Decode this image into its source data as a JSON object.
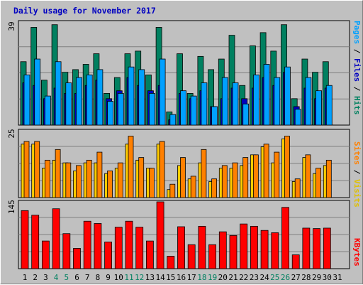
{
  "title": "Daily usage for November 2017",
  "panels": {
    "top": {
      "max_label": "39",
      "legend": [
        {
          "text": "Pages",
          "color": "#00a0ff"
        },
        {
          "text": "Files",
          "color": "#0000c0"
        },
        {
          "text": "Hits",
          "color": "#008060"
        }
      ]
    },
    "middle": {
      "max_label": "25",
      "legend": [
        {
          "text": "Sites",
          "color": "#ff8000"
        },
        {
          "text": "Visits",
          "color": "#e0c000"
        }
      ]
    },
    "bottom": {
      "max_label": "145",
      "legend": [
        {
          "text": "KBytes",
          "color": "#ff0000"
        }
      ]
    }
  },
  "legend_separator": " / ",
  "days": [
    "1",
    "2",
    "3",
    "4",
    "5",
    "6",
    "7",
    "8",
    "9",
    "10",
    "11",
    "12",
    "13",
    "14",
    "15",
    "16",
    "17",
    "18",
    "19",
    "20",
    "21",
    "22",
    "23",
    "24",
    "25",
    "26",
    "27",
    "28",
    "29",
    "30",
    "31"
  ],
  "weekend_days": [
    "4",
    "5",
    "11",
    "12",
    "18",
    "19",
    "25",
    "26"
  ],
  "colors": {
    "hits": "#008060",
    "files": "#0000c0",
    "pages": "#00a0ff",
    "visits": "#ffcc00",
    "sites": "#ff8000",
    "kbytes": "#ff0000",
    "weekday_label": "#000000",
    "weekend_label": "#008060"
  },
  "chart_data": {
    "type": "bar",
    "x": [
      "1",
      "2",
      "3",
      "4",
      "5",
      "6",
      "7",
      "8",
      "9",
      "10",
      "11",
      "12",
      "13",
      "14",
      "15",
      "16",
      "17",
      "18",
      "19",
      "20",
      "21",
      "22",
      "23",
      "24",
      "25",
      "26",
      "27",
      "28",
      "29",
      "30",
      "31"
    ],
    "series": [
      {
        "name": "Hits",
        "values": [
          24,
          37,
          17,
          38,
          20,
          21,
          23,
          27,
          12,
          18,
          27,
          28,
          19,
          37,
          5,
          27,
          12,
          26,
          21,
          25,
          34,
          15,
          30,
          35,
          28,
          38,
          10,
          25,
          20,
          24,
          0
        ]
      },
      {
        "name": "Files",
        "values": [
          16,
          15,
          10,
          14,
          12,
          12,
          15,
          17,
          10,
          13,
          18,
          15,
          13,
          15,
          2,
          12,
          10,
          13,
          7,
          10,
          14,
          10,
          14,
          18,
          15,
          20,
          7,
          14,
          10,
          14,
          0
        ]
      },
      {
        "name": "Pages",
        "values": [
          19,
          25,
          11,
          24,
          16,
          18,
          19,
          21,
          9,
          12,
          22,
          21,
          12,
          25,
          4,
          13,
          11,
          16,
          7,
          18,
          16,
          8,
          19,
          23,
          18,
          22,
          6,
          18,
          13,
          15,
          0
        ]
      },
      {
        "name": "Visits",
        "values": [
          20,
          20,
          11,
          14,
          13,
          10,
          13,
          13,
          9,
          11,
          20,
          14,
          11,
          20,
          3,
          12,
          7,
          13,
          6,
          11,
          11,
          12,
          16,
          19,
          13,
          22,
          6,
          15,
          9,
          12,
          0
        ]
      },
      {
        "name": "Sites",
        "values": [
          21,
          21,
          14,
          18,
          13,
          12,
          14,
          17,
          10,
          13,
          23,
          15,
          11,
          21,
          5,
          15,
          8,
          18,
          7,
          12,
          13,
          15,
          16,
          20,
          17,
          23,
          7,
          16,
          11,
          14,
          0
        ]
      },
      {
        "name": "KBytes",
        "values": [
          126,
          116,
          60,
          130,
          76,
          44,
          103,
          98,
          58,
          90,
          103,
          90,
          60,
          145,
          27,
          91,
          52,
          92,
          52,
          80,
          72,
          97,
          92,
          83,
          78,
          133,
          30,
          88,
          87,
          88,
          0
        ]
      }
    ],
    "top_panel_max": 39,
    "middle_panel_max": 25,
    "bottom_panel_max": 145
  }
}
